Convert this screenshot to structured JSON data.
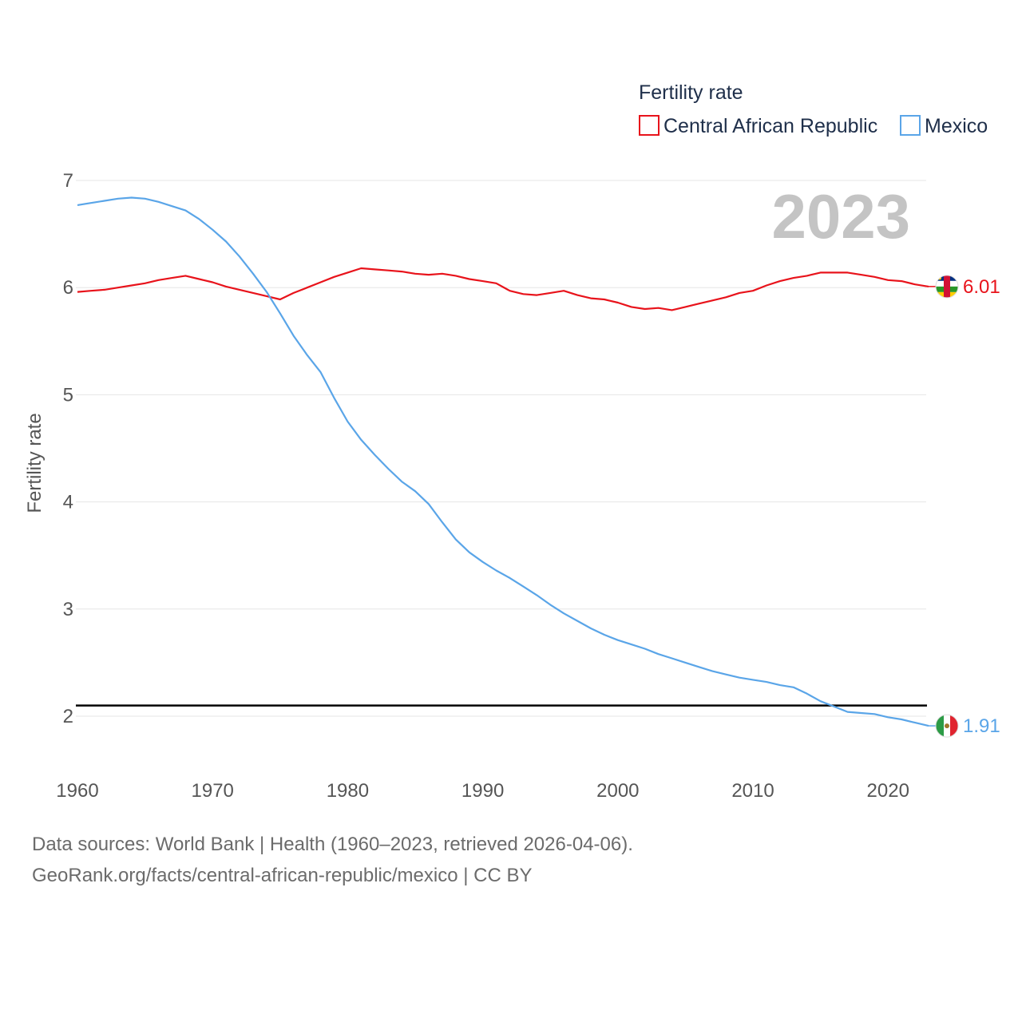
{
  "chart_data": {
    "type": "line",
    "title": "",
    "xlabel": "",
    "ylabel": "Fertility rate",
    "xlim": [
      1960,
      2023
    ],
    "ylim": [
      1.6,
      7.0
    ],
    "xticks": [
      1960,
      1970,
      1980,
      1990,
      2000,
      2010,
      2020
    ],
    "yticks": [
      2,
      3,
      4,
      5,
      6,
      7
    ],
    "grid": true,
    "legend_title": "Fertility rate",
    "legend_position": "top-right",
    "current_year_label": "2023",
    "reference_line": {
      "y": 2.1,
      "color": "#000000"
    },
    "x": [
      1960,
      1961,
      1962,
      1963,
      1964,
      1965,
      1966,
      1967,
      1968,
      1969,
      1970,
      1971,
      1972,
      1973,
      1974,
      1975,
      1976,
      1977,
      1978,
      1979,
      1980,
      1981,
      1982,
      1983,
      1984,
      1985,
      1986,
      1987,
      1988,
      1989,
      1990,
      1991,
      1992,
      1993,
      1994,
      1995,
      1996,
      1997,
      1998,
      1999,
      2000,
      2001,
      2002,
      2003,
      2004,
      2005,
      2006,
      2007,
      2008,
      2009,
      2010,
      2011,
      2012,
      2013,
      2014,
      2015,
      2016,
      2017,
      2018,
      2019,
      2020,
      2021,
      2022,
      2023
    ],
    "series": [
      {
        "name": "Central African Republic",
        "color": "#e8131b",
        "end_label": "6.01",
        "flag_icon": "central-african-republic-flag-icon",
        "values": [
          5.96,
          5.97,
          5.98,
          6.0,
          6.02,
          6.04,
          6.07,
          6.09,
          6.11,
          6.08,
          6.05,
          6.01,
          5.98,
          5.95,
          5.92,
          5.89,
          5.95,
          6.0,
          6.05,
          6.1,
          6.14,
          6.18,
          6.17,
          6.16,
          6.15,
          6.13,
          6.12,
          6.13,
          6.11,
          6.08,
          6.06,
          6.04,
          5.97,
          5.94,
          5.93,
          5.95,
          5.97,
          5.93,
          5.9,
          5.89,
          5.86,
          5.82,
          5.8,
          5.81,
          5.79,
          5.82,
          5.85,
          5.88,
          5.91,
          5.95,
          5.97,
          6.02,
          6.06,
          6.09,
          6.11,
          6.14,
          6.14,
          6.14,
          6.12,
          6.1,
          6.07,
          6.06,
          6.03,
          6.01
        ]
      },
      {
        "name": "Mexico",
        "color": "#5aa5e8",
        "end_label": "1.91",
        "flag_icon": "mexico-flag-icon",
        "values": [
          6.77,
          6.79,
          6.81,
          6.83,
          6.84,
          6.83,
          6.8,
          6.76,
          6.72,
          6.64,
          6.54,
          6.43,
          6.29,
          6.13,
          5.96,
          5.76,
          5.55,
          5.37,
          5.21,
          4.97,
          4.75,
          4.58,
          4.44,
          4.31,
          4.19,
          4.1,
          3.98,
          3.81,
          3.65,
          3.53,
          3.44,
          3.36,
          3.29,
          3.21,
          3.13,
          3.04,
          2.96,
          2.89,
          2.82,
          2.76,
          2.71,
          2.67,
          2.63,
          2.58,
          2.54,
          2.5,
          2.46,
          2.42,
          2.39,
          2.36,
          2.34,
          2.32,
          2.29,
          2.27,
          2.21,
          2.14,
          2.09,
          2.04,
          2.03,
          2.02,
          1.99,
          1.97,
          1.94,
          1.91
        ]
      }
    ]
  },
  "footer": {
    "source_line": "Data sources: World Bank | Health (1960–2023, retrieved 2026-04-06).",
    "url_line": "GeoRank.org/facts/central-african-republic/mexico | CC BY"
  }
}
